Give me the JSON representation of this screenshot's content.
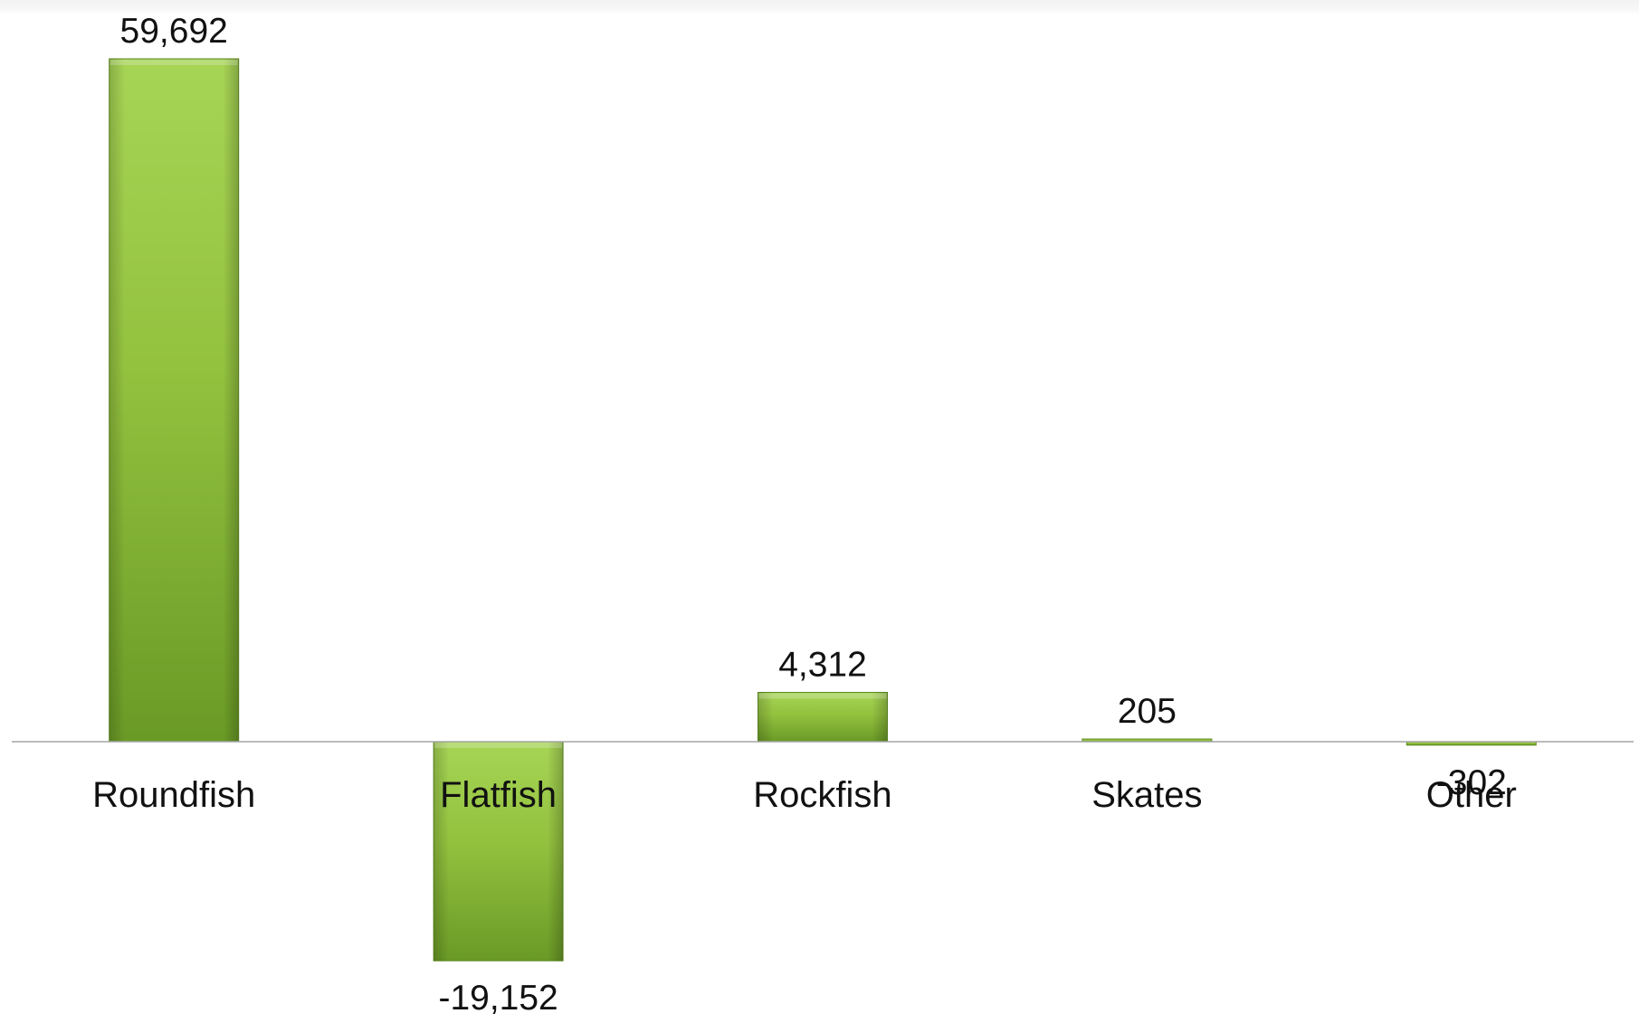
{
  "chart_data": {
    "type": "bar",
    "categories": [
      "Roundfish",
      "Flatfish",
      "Rockfish",
      "Skates",
      "Other"
    ],
    "values": [
      59692,
      -19152,
      4312,
      205,
      -302
    ],
    "data_labels": [
      "59,692",
      "-19,152",
      "4,312",
      "205",
      "-302"
    ],
    "title": "",
    "xlabel": "",
    "ylabel": "",
    "ylim": [
      -24000,
      63000
    ],
    "grid": false,
    "legend": "none",
    "colors": {
      "bar_top": "#a6d455",
      "bar_mid": "#93c23f",
      "bar_bottom": "#6a9a26",
      "bar_edge": "#5e8a22",
      "axis": "#a6a6a6",
      "text": "#111111"
    }
  }
}
